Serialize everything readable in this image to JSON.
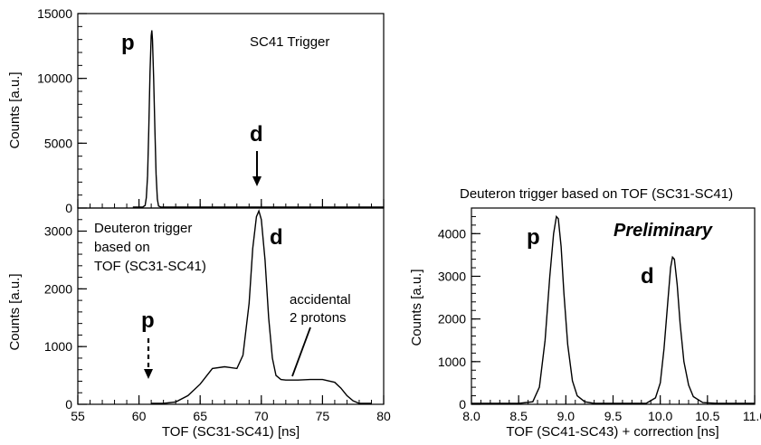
{
  "colors": {
    "preliminary": "#d62020",
    "line": "#000000"
  },
  "chart_data": [
    {
      "type": "line",
      "title": "",
      "xlabel": "",
      "ylabel": "Counts [a.u.]",
      "xlim": [
        55,
        80
      ],
      "ylim": [
        0,
        15000
      ],
      "xticks": [
        55,
        60,
        65,
        70,
        75,
        80
      ],
      "yticks": [
        0,
        5000,
        10000,
        15000
      ],
      "annotations": {
        "trigger": "SC41 Trigger",
        "p": "p",
        "d": "d"
      },
      "series": [
        {
          "x": [
            59.5,
            60.0,
            60.3,
            60.5,
            60.6,
            60.7,
            60.8,
            60.9,
            61.0,
            61.05,
            61.1,
            61.2,
            61.3,
            61.4,
            61.5,
            61.6,
            61.8,
            62.2,
            63.0,
            66.0,
            70.0,
            75.0,
            80.0
          ],
          "y": [
            0,
            5,
            30,
            200,
            800,
            2500,
            6000,
            10500,
            13300,
            13700,
            13000,
            10000,
            6000,
            2600,
            700,
            150,
            30,
            8,
            3,
            2,
            40,
            2,
            0
          ]
        }
      ]
    },
    {
      "type": "line",
      "title": "",
      "xlabel": "TOF (SC31-SC41) [ns]",
      "ylabel": "Counts [a.u.]",
      "xlim": [
        55,
        80
      ],
      "ylim": [
        0,
        3400
      ],
      "xticks": [
        55,
        60,
        65,
        70,
        75,
        80
      ],
      "yticks": [
        0,
        1000,
        2000,
        3000
      ],
      "annotations": {
        "trigger_line1": "Deuteron trigger",
        "trigger_line2": "based on",
        "trigger_line3": "TOF (SC31-SC41)",
        "accidental_line1": "accidental",
        "accidental_line2": "2 protons",
        "p": "p",
        "d": "d"
      },
      "series": [
        {
          "x": [
            61.0,
            62.0,
            63.0,
            64.0,
            65.0,
            66.0,
            67.0,
            68.0,
            68.5,
            69.0,
            69.3,
            69.6,
            69.8,
            70.0,
            70.3,
            70.6,
            70.9,
            71.2,
            71.6,
            72.0,
            73.0,
            74.0,
            75.0,
            76.0,
            76.5,
            77.0,
            77.5,
            78.0,
            79.0
          ],
          "y": [
            0,
            10,
            40,
            150,
            350,
            620,
            650,
            620,
            850,
            1750,
            2700,
            3250,
            3350,
            3200,
            2500,
            1500,
            800,
            500,
            430,
            420,
            420,
            430,
            430,
            380,
            280,
            150,
            60,
            10,
            0
          ]
        }
      ]
    },
    {
      "type": "line",
      "title": "Deuteron trigger based on TOF (SC31-SC41)",
      "xlabel": "TOF (SC41-SC43) + correction [ns]",
      "ylabel": "Counts [a.u.]",
      "xlim": [
        8.0,
        11.0
      ],
      "ylim": [
        0,
        4600
      ],
      "xticks": [
        8.0,
        8.5,
        9.0,
        9.5,
        10.0,
        10.5,
        11.0
      ],
      "yticks": [
        0,
        1000,
        2000,
        3000,
        4000
      ],
      "annotations": {
        "preliminary": "Preliminary",
        "p": "p",
        "d": "d"
      },
      "series": [
        {
          "x": [
            8.0,
            8.5,
            8.65,
            8.72,
            8.78,
            8.83,
            8.87,
            8.9,
            8.92,
            8.95,
            8.98,
            9.02,
            9.07,
            9.12,
            9.2,
            9.3,
            9.6,
            9.85,
            9.95,
            10.0,
            10.04,
            10.08,
            10.11,
            10.13,
            10.15,
            10.18,
            10.21,
            10.25,
            10.3,
            10.35,
            10.45,
            10.6,
            11.0
          ],
          "y": [
            0,
            5,
            60,
            400,
            1500,
            3000,
            4000,
            4400,
            4350,
            3700,
            2600,
            1400,
            550,
            200,
            60,
            20,
            10,
            20,
            150,
            500,
            1300,
            2400,
            3200,
            3450,
            3400,
            2800,
            1900,
            1000,
            450,
            180,
            40,
            10,
            0
          ]
        }
      ]
    }
  ]
}
